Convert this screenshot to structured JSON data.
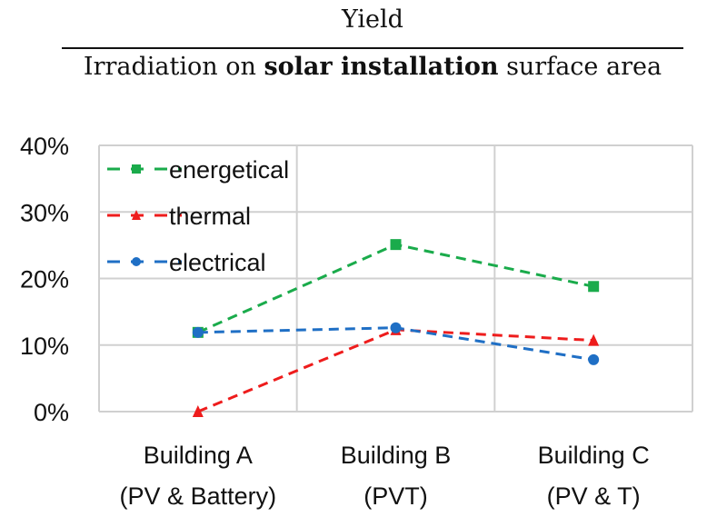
{
  "chart_data": {
    "type": "line",
    "title_numerator": "Yield",
    "title_denominator_parts": [
      "Irradiation on ",
      "solar installation",
      " surface area"
    ],
    "categories": [
      [
        "Building A",
        "(PV & Battery)"
      ],
      [
        "Building B",
        "(PVT)"
      ],
      [
        "Building C",
        "(PV & T)"
      ]
    ],
    "ylim": [
      0,
      40
    ],
    "yticks": [
      0,
      10,
      20,
      30,
      40
    ],
    "ytick_labels": [
      "0%",
      "10%",
      "20%",
      "30%",
      "40%"
    ],
    "grid": true,
    "legend_position": "top-left",
    "series": [
      {
        "name": "energetical",
        "color": "#1aab4b",
        "marker": "square",
        "values": [
          11.9,
          25.1,
          18.8
        ]
      },
      {
        "name": "thermal",
        "color": "#ee1c1c",
        "marker": "triangle",
        "values": [
          0,
          12.3,
          10.7
        ]
      },
      {
        "name": "electrical",
        "color": "#1f6fc5",
        "marker": "circle",
        "values": [
          11.9,
          12.6,
          7.8
        ]
      }
    ]
  }
}
